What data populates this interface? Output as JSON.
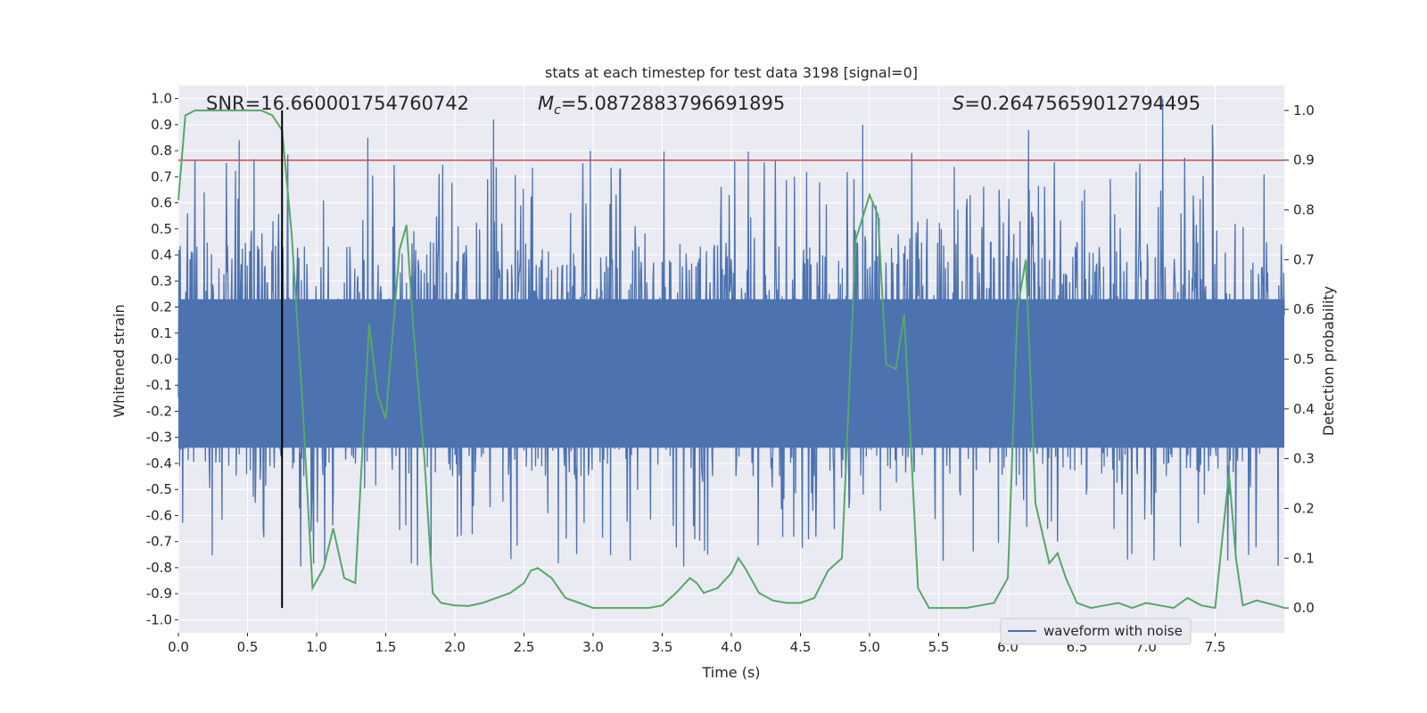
{
  "chart_data": {
    "type": "line",
    "title": "stats at each timestep for test data 3198 [signal=0]",
    "xlabel": "Time (s)",
    "ylabel_left": "Whitened strain",
    "ylabel_right": "Detection probability",
    "xlim": [
      0.0,
      8.0
    ],
    "ylim_left": [
      -1.05,
      1.05
    ],
    "ylim_right": [
      -0.05,
      1.05
    ],
    "grid": true,
    "x_ticks": [
      "0.0",
      "0.5",
      "1.0",
      "1.5",
      "2.0",
      "2.5",
      "3.0",
      "3.5",
      "4.0",
      "4.5",
      "5.0",
      "5.5",
      "6.0",
      "6.5",
      "7.0",
      "7.5"
    ],
    "y_left_ticks": [
      "-1.0",
      "-0.9",
      "-0.8",
      "-0.7",
      "-0.6",
      "-0.5",
      "-0.4",
      "-0.3",
      "-0.2",
      "-0.1",
      "0.0",
      "0.1",
      "0.2",
      "0.3",
      "0.4",
      "0.5",
      "0.6",
      "0.7",
      "0.8",
      "0.9",
      "1.0"
    ],
    "y_right_ticks": [
      "0.0",
      "0.1",
      "0.2",
      "0.3",
      "0.4",
      "0.5",
      "0.6",
      "0.7",
      "0.8",
      "0.9",
      "1.0"
    ],
    "annotations": {
      "snr": "SNR=16.660001754760742",
      "mc_symbol": "M",
      "mc_sub": "c",
      "mc_value": "=5.0872883796691895",
      "s_symbol": "S",
      "s_value": "=0.26475659012794495"
    },
    "threshold_right": 0.9,
    "marker_x": 0.75,
    "legend": {
      "label": "waveform with noise",
      "position": "lower-right"
    },
    "colors": {
      "waveform": "#4c72b0",
      "probability": "#55a868",
      "threshold": "#c44e52",
      "marker": "#000000",
      "background": "#eaeaf2",
      "grid": "#ffffff"
    },
    "series": [
      {
        "name": "waveform with noise",
        "axis": "left",
        "description_range": [
          -0.92,
          1.0
        ],
        "peaks_x": [
          0.44,
          1.37,
          2.28,
          2.98,
          4.95,
          6.15,
          7.12,
          7.48
        ],
        "peaks_y": [
          0.84,
          0.85,
          0.92,
          0.8,
          0.9,
          0.88,
          1.0,
          0.9
        ]
      },
      {
        "axis": "right",
        "x": [
          0.0,
          0.05,
          0.12,
          0.2,
          0.3,
          0.4,
          0.5,
          0.6,
          0.68,
          0.75,
          0.82,
          0.9,
          0.97,
          1.05,
          1.12,
          1.2,
          1.28,
          1.38,
          1.44,
          1.5,
          1.6,
          1.65,
          1.7,
          1.78,
          1.84,
          1.9,
          2.0,
          2.1,
          2.2,
          2.3,
          2.4,
          2.5,
          2.55,
          2.6,
          2.7,
          2.8,
          2.9,
          3.0,
          3.1,
          3.2,
          3.3,
          3.4,
          3.5,
          3.6,
          3.7,
          3.75,
          3.8,
          3.9,
          4.0,
          4.05,
          4.1,
          4.2,
          4.3,
          4.4,
          4.5,
          4.6,
          4.7,
          4.8,
          4.9,
          5.0,
          5.06,
          5.12,
          5.19,
          5.25,
          5.3,
          5.35,
          5.43,
          5.5,
          5.6,
          5.7,
          5.8,
          5.9,
          6.0,
          6.07,
          6.13,
          6.2,
          6.3,
          6.36,
          6.42,
          6.5,
          6.6,
          6.7,
          6.8,
          6.9,
          7.0,
          7.1,
          7.2,
          7.3,
          7.4,
          7.5,
          7.6,
          7.65,
          7.7,
          7.8,
          7.87,
          7.94,
          8.0
        ],
        "values": [
          0.82,
          0.99,
          1.0,
          1.0,
          1.0,
          1.0,
          1.0,
          1.0,
          0.99,
          0.96,
          0.75,
          0.4,
          0.04,
          0.08,
          0.16,
          0.06,
          0.05,
          0.57,
          0.43,
          0.38,
          0.72,
          0.77,
          0.56,
          0.3,
          0.03,
          0.01,
          0.005,
          0.004,
          0.01,
          0.02,
          0.03,
          0.05,
          0.075,
          0.08,
          0.06,
          0.02,
          0.01,
          0.0,
          0.0,
          0.0,
          0.0,
          0.0,
          0.005,
          0.03,
          0.06,
          0.05,
          0.03,
          0.04,
          0.07,
          0.1,
          0.08,
          0.03,
          0.015,
          0.01,
          0.01,
          0.02,
          0.075,
          0.1,
          0.74,
          0.83,
          0.79,
          0.49,
          0.48,
          0.59,
          0.32,
          0.04,
          0.0,
          0.0,
          0.0,
          0.0,
          0.005,
          0.01,
          0.06,
          0.6,
          0.7,
          0.21,
          0.09,
          0.11,
          0.06,
          0.01,
          0.0,
          0.005,
          0.01,
          0.0,
          0.01,
          0.005,
          0.0,
          0.02,
          0.005,
          0.0,
          0.27,
          0.1,
          0.005,
          0.015,
          0.01,
          0.005,
          0.0
        ]
      }
    ]
  }
}
